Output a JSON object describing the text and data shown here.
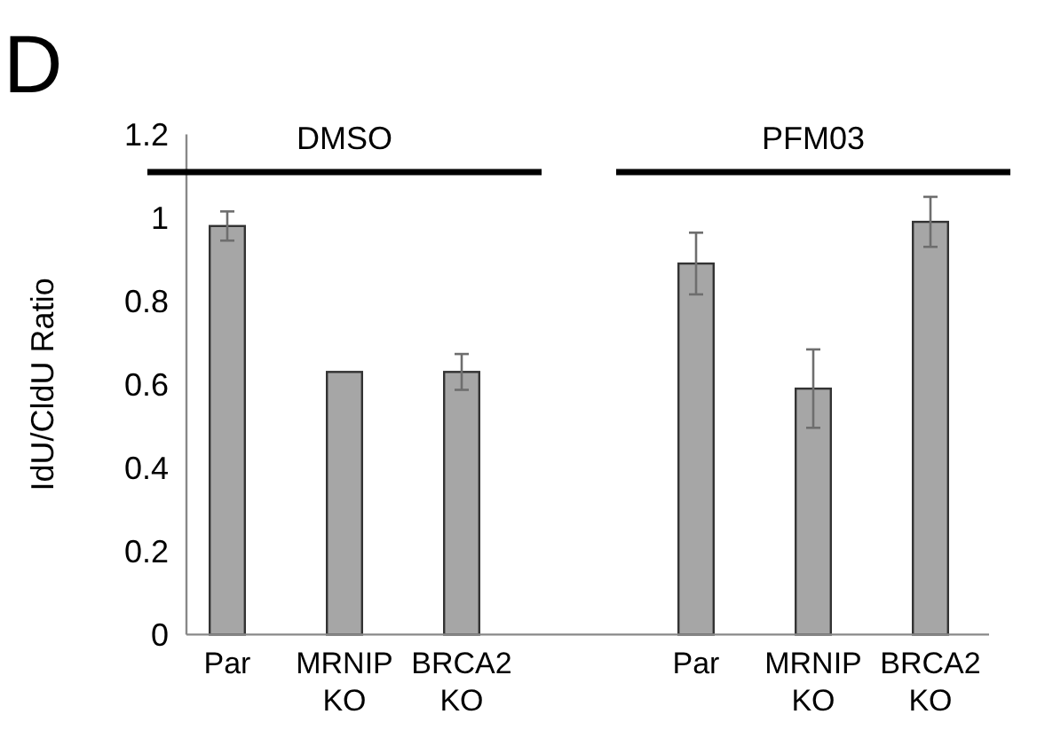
{
  "chart_data": {
    "type": "bar",
    "ylabel": "IdU/CldU Ratio",
    "categories": [
      "Par",
      "MRNIP KO",
      "BRCA2 KO",
      null,
      "Par",
      "MRNIP KO",
      "BRCA2 KO"
    ],
    "values": [
      0.98,
      0.63,
      0.63,
      null,
      0.89,
      0.59,
      0.99
    ],
    "errors": [
      0.035,
      null,
      0.043,
      null,
      0.074,
      0.094,
      0.06
    ],
    "color": "#a6a6a6",
    "ylim": [
      0,
      1.2
    ],
    "yticks": [
      0,
      0.2,
      0.4,
      0.6,
      0.8,
      1,
      1.2
    ],
    "grid": false,
    "annotations": [
      "D",
      "DMSO",
      "PFM03"
    ]
  }
}
